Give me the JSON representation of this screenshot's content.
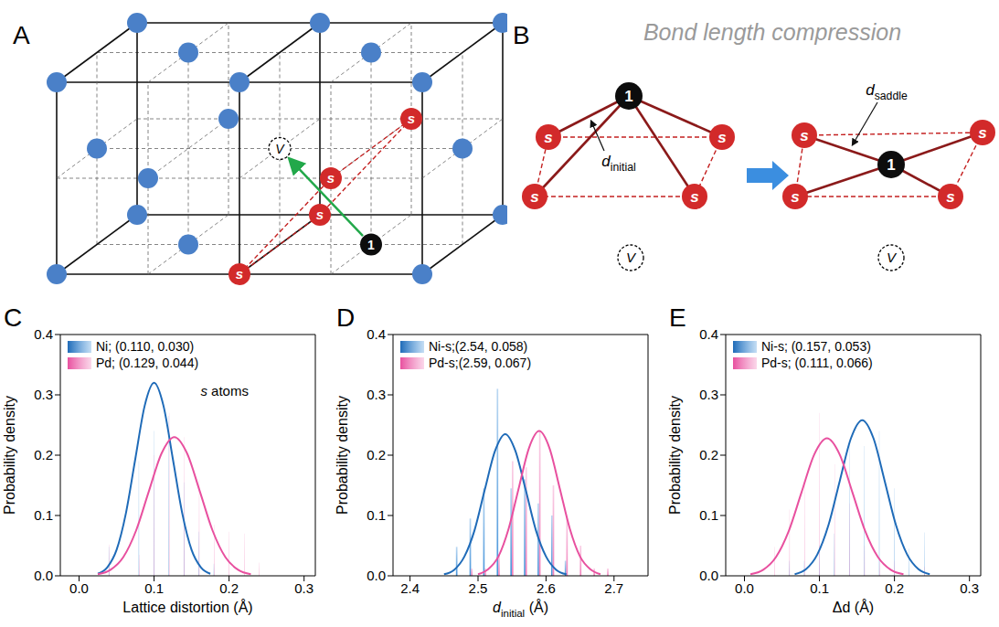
{
  "diagram": {
    "panel_A": {
      "letter": "A",
      "s_label": "s",
      "migrating_label": "1",
      "vacancy_label": "V"
    },
    "panel_B": {
      "letter": "B",
      "title": "Bond length compression",
      "s_label": "s",
      "migrating_label": "1",
      "vacancy_label": "V",
      "d_initial": [
        {
          "text": "d"
        },
        {
          "text": "initial",
          "sub": true
        }
      ],
      "d_saddle": [
        {
          "text": "d"
        },
        {
          "text": "saddle",
          "sub": true
        }
      ]
    }
  },
  "chart_data": [
    {
      "type": "histogram",
      "panel": "C",
      "x_label": "Lattice distortion (Å)",
      "y_label": "Probability density",
      "annotation": "s atoms",
      "grid": false,
      "legend": "top-left",
      "xlim": [
        -0.025,
        0.315
      ],
      "xticks": [
        {
          "value": 0,
          "label": "0.0"
        },
        0.1,
        0.2,
        0.3
      ],
      "ylim": [
        0,
        0.4
      ],
      "yticks": [
        {
          "value": 0,
          "label": "0.0"
        },
        0.1,
        0.2,
        0.3,
        0.4
      ],
      "x": [
        0.04,
        0.06,
        0.08,
        0.1,
        0.12,
        0.14,
        0.16,
        0.18,
        0.2,
        0.22,
        0.24
      ],
      "series": [
        {
          "name": "Ni; (0.110, 0.030)",
          "color": "#3d8fd9",
          "values": [
            0.048,
            0,
            0.19,
            0.24,
            0.265,
            0.155,
            0.073,
            0.02,
            0,
            0,
            0
          ],
          "fit_color": "#1f6bb8",
          "fit": {
            "x": [
              0.025,
              0.0375,
              0.05,
              0.0625,
              0.075,
              0.0875,
              0.1,
              0.1125,
              0.125,
              0.1375,
              0.15,
              0.1625,
              0.175
            ],
            "y": [
              0.0035,
              0.014,
              0.043,
              0.104,
              0.194,
              0.282,
              0.32,
              0.282,
              0.194,
              0.104,
              0.043,
              0.014,
              0.0035
            ]
          }
        },
        {
          "name": "Pd; (0.129, 0.044)",
          "color": "#f07ab8",
          "values": [
            0.052,
            0,
            0.035,
            0.2,
            0.27,
            0.23,
            0.16,
            0.085,
            0.073,
            0.07,
            0.022
          ],
          "fit_color": "#e8509f",
          "fit": {
            "x": [
              0.025,
              0.042,
              0.059,
              0.076,
              0.093,
              0.11,
              0.127,
              0.144,
              0.161,
              0.178,
              0.195,
              0.212,
              0.229
            ],
            "y": [
              0.0025,
              0.01,
              0.031,
              0.075,
              0.14,
              0.203,
              0.23,
              0.203,
              0.14,
              0.075,
              0.031,
              0.01,
              0.0025
            ]
          }
        }
      ]
    },
    {
      "type": "histogram",
      "panel": "D",
      "x_label": [
        {
          "text": "d"
        },
        {
          "text": "initial",
          "sub": true
        },
        {
          "text": " (Å)"
        }
      ],
      "y_label": "Probability density",
      "grid": false,
      "legend": "top-left",
      "xlim": [
        2.375,
        2.75
      ],
      "xticks": [
        2.4,
        2.5,
        2.6,
        2.7
      ],
      "ylim": [
        0,
        0.4
      ],
      "yticks": [
        {
          "value": 0,
          "label": "0.0"
        },
        0.1,
        0.2,
        0.3,
        0.4
      ],
      "x": [
        2.47,
        2.49,
        2.51,
        2.53,
        2.55,
        2.57,
        2.59,
        2.61,
        2.63,
        2.65,
        2.67,
        2.69
      ],
      "series": [
        {
          "name": "Ni-s;(2.54, 0.058)",
          "color": "#3d8fd9",
          "values": [
            0.048,
            0.095,
            0.145,
            0.31,
            0.145,
            0.16,
            0.12,
            0.1,
            0.025,
            0,
            0,
            0
          ],
          "fit_color": "#1f6bb8",
          "fit": {
            "x": [
              2.45,
              2.465,
              2.48,
              2.495,
              2.51,
              2.525,
              2.54,
              2.555,
              2.57,
              2.585,
              2.6,
              2.615,
              2.63
            ],
            "y": [
              0.0026,
              0.01,
              0.032,
              0.076,
              0.143,
              0.207,
              0.235,
              0.207,
              0.143,
              0.076,
              0.032,
              0.01,
              0.0026
            ]
          }
        },
        {
          "name": "Pd-s;(2.59, 0.067)",
          "color": "#f07ab8",
          "values": [
            0,
            0.012,
            0.012,
            0.035,
            0.19,
            0.18,
            0.24,
            0.15,
            0.095,
            0.05,
            0.012,
            0.012
          ],
          "fit_color": "#e8509f",
          "fit": {
            "x": [
              2.5,
              2.515,
              2.53,
              2.545,
              2.56,
              2.575,
              2.59,
              2.605,
              2.62,
              2.635,
              2.65,
              2.665,
              2.68
            ],
            "y": [
              0.0026,
              0.011,
              0.032,
              0.078,
              0.146,
              0.212,
              0.24,
              0.212,
              0.146,
              0.078,
              0.032,
              0.011,
              0.0026
            ]
          }
        }
      ]
    },
    {
      "type": "histogram",
      "panel": "E",
      "x_label": "Δd (Å)",
      "y_label": "Probability density",
      "grid": false,
      "legend": "top-left",
      "xlim": [
        -0.025,
        0.315
      ],
      "xticks": [
        {
          "value": 0,
          "label": "0.0"
        },
        0.1,
        0.2,
        0.3
      ],
      "ylim": [
        0,
        0.4
      ],
      "yticks": [
        {
          "value": 0,
          "label": "0.0"
        },
        0.1,
        0.2,
        0.3,
        0.4
      ],
      "x": [
        0.04,
        0.06,
        0.08,
        0.1,
        0.12,
        0.14,
        0.16,
        0.18,
        0.2,
        0.22,
        0.24
      ],
      "series": [
        {
          "name": "Ni-s; (0.157, 0.053)",
          "color": "#3d8fd9",
          "values": [
            0,
            0.025,
            0.025,
            0.05,
            0.07,
            0.22,
            0.215,
            0.24,
            0.145,
            0.045,
            0.072
          ],
          "fit_color": "#1f6bb8",
          "fit": {
            "x": [
              0.067,
              0.082,
              0.097,
              0.112,
              0.127,
              0.142,
              0.157,
              0.172,
              0.187,
              0.202,
              0.217,
              0.232,
              0.247
            ],
            "y": [
              0.0028,
              0.011,
              0.035,
              0.084,
              0.157,
              0.228,
              0.258,
              0.228,
              0.157,
              0.084,
              0.035,
              0.011,
              0.0028
            ]
          }
        },
        {
          "name": "Pd-s; (0.111, 0.066)",
          "color": "#f07ab8",
          "values": [
            0.048,
            0.11,
            0.15,
            0.27,
            0.185,
            0.12,
            0.05,
            0.025,
            0.025,
            0,
            0.015
          ],
          "fit_color": "#e8509f",
          "fit": {
            "x": [
              0.008,
              0.025,
              0.042,
              0.059,
              0.076,
              0.093,
              0.11,
              0.127,
              0.144,
              0.161,
              0.178,
              0.195,
              0.212
            ],
            "y": [
              0.0025,
              0.01,
              0.031,
              0.074,
              0.138,
              0.201,
              0.228,
              0.201,
              0.138,
              0.074,
              0.031,
              0.01,
              0.0025
            ]
          }
        }
      ]
    }
  ]
}
